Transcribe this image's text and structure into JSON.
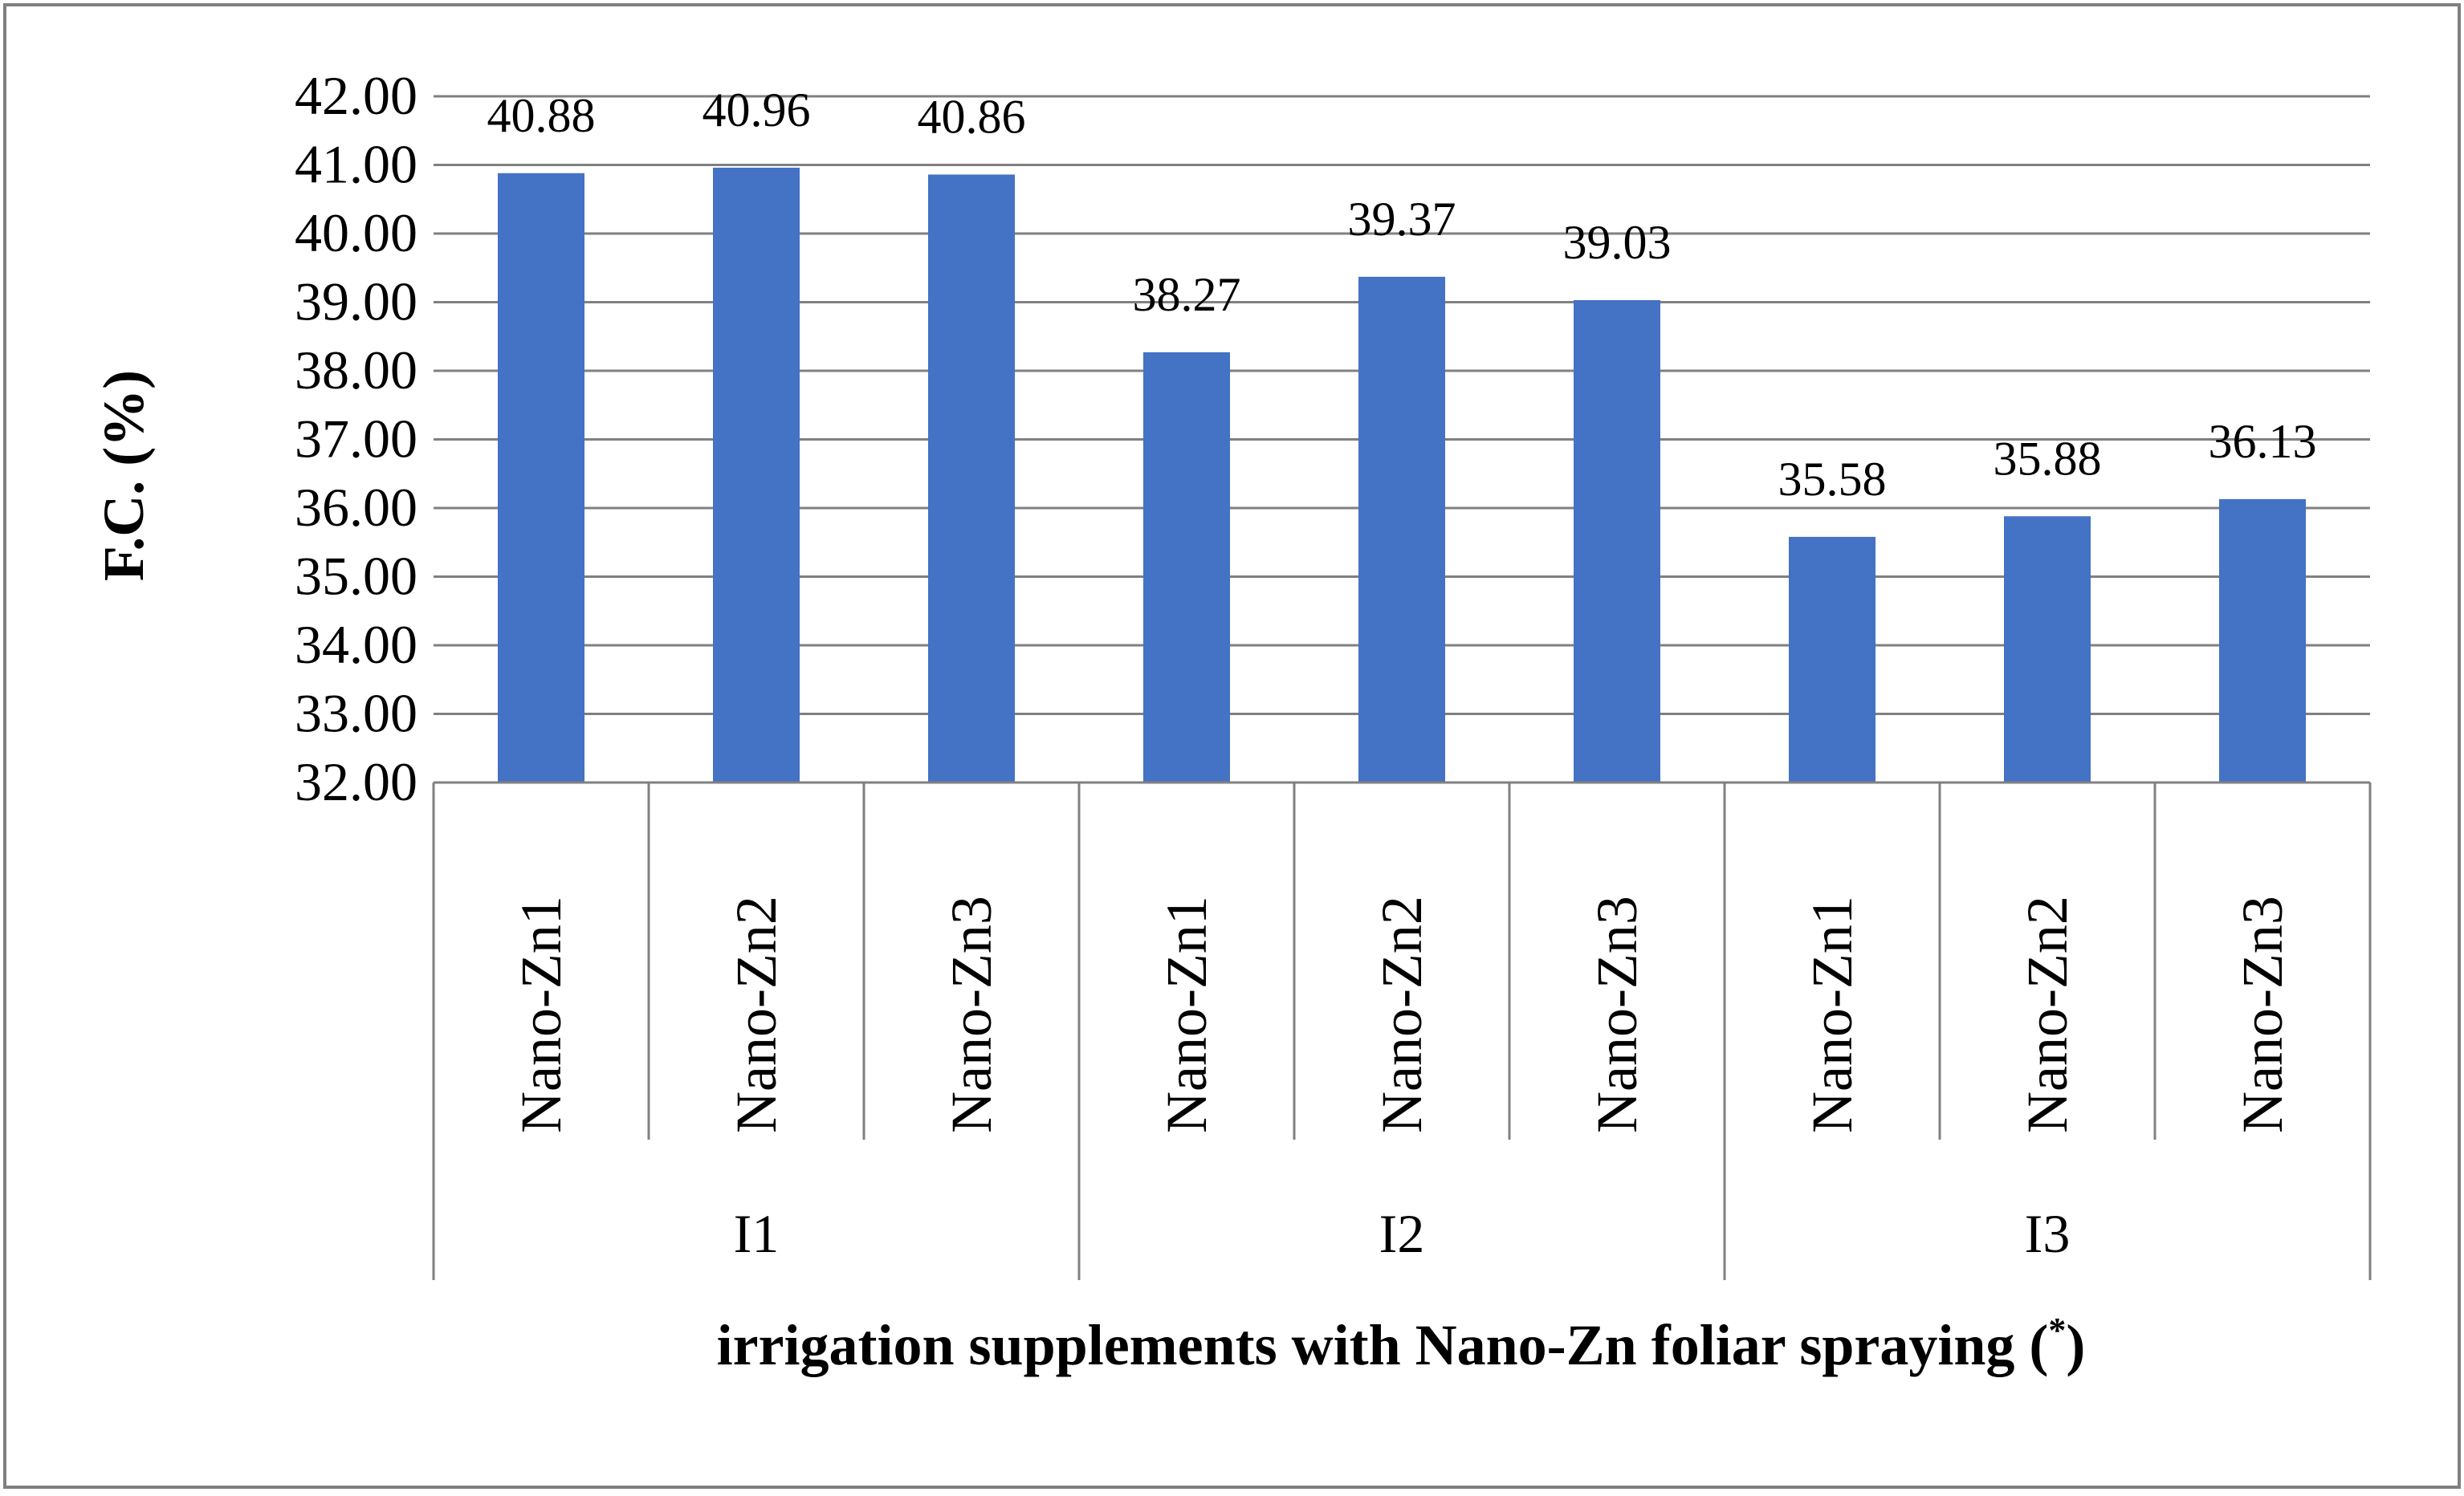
{
  "chart_data": {
    "type": "bar",
    "title": "",
    "ylabel": "F.C. (%)",
    "xlabel": "irrigation supplements with Nano-Zn foliar spraying",
    "xlabel_suffix": "*",
    "ylim": [
      32,
      42
    ],
    "ytick_step": 1,
    "ytick_format_decimals": 2,
    "grid": true,
    "legend": "none",
    "groups": [
      "I1",
      "I2",
      "I3"
    ],
    "categories": [
      "Nano-Zn1",
      "Nano-Zn2",
      "Nano-Zn3",
      "Nano-Zn1",
      "Nano-Zn2",
      "Nano-Zn3",
      "Nano-Zn1",
      "Nano-Zn2",
      "Nano-Zn3"
    ],
    "category_groups": [
      0,
      0,
      0,
      1,
      1,
      1,
      2,
      2,
      2
    ],
    "values": [
      40.88,
      40.96,
      40.86,
      38.27,
      39.37,
      39.03,
      35.58,
      35.88,
      36.13
    ],
    "data_labels": [
      "40.88",
      "40.96",
      "40.86",
      "38.27",
      "39.37",
      "39.03",
      "35.58",
      "35.88",
      "36.13"
    ],
    "colors": {
      "bar": "#4472C4",
      "grid": "#808080",
      "axis": "#808080",
      "border": "#808080"
    }
  }
}
